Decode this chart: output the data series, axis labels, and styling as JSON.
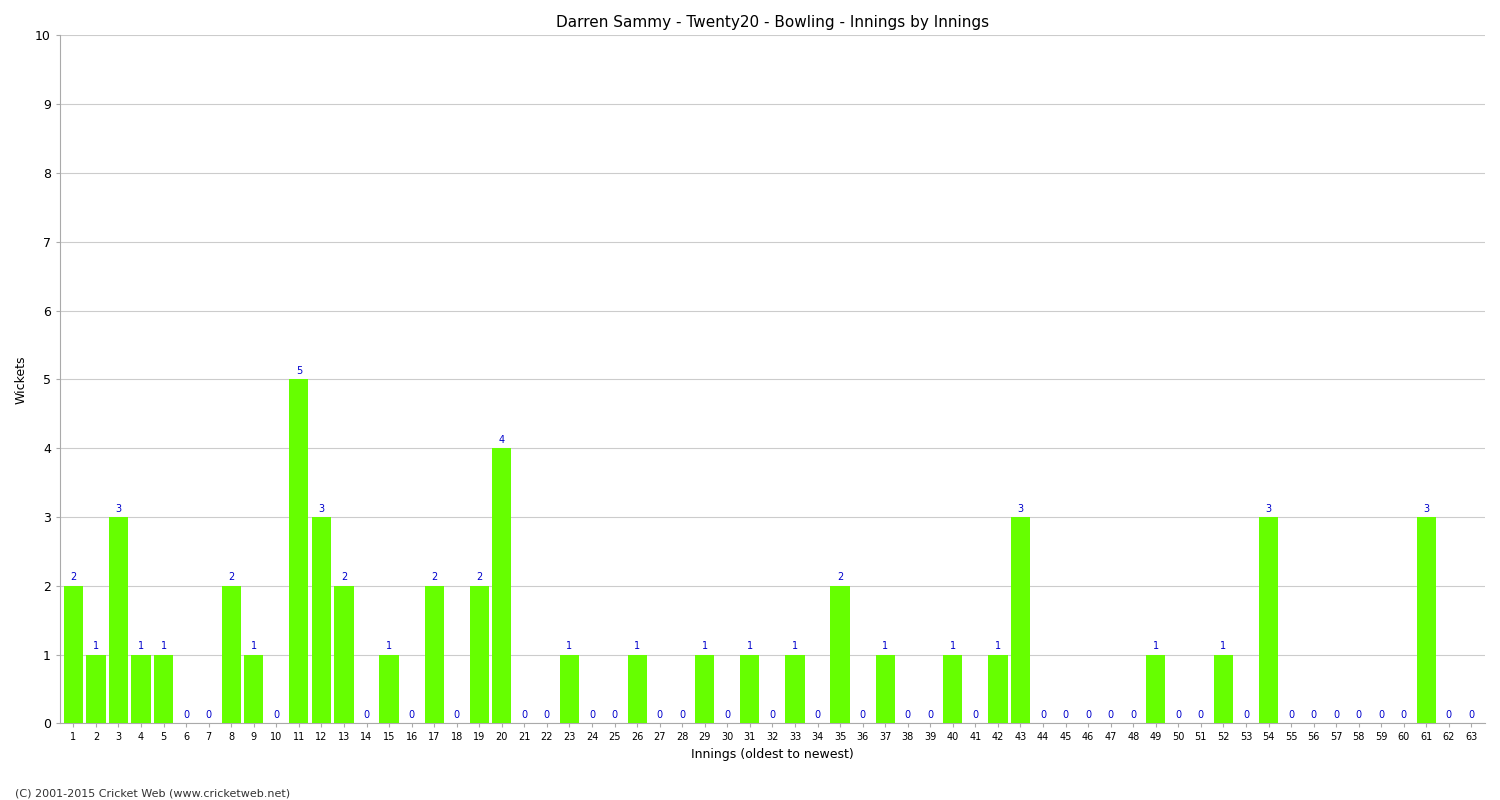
{
  "title": "Darren Sammy - Twenty20 - Bowling - Innings by Innings",
  "xlabel": "Innings (oldest to newest)",
  "ylabel": "Wickets",
  "ylim": [
    0,
    10
  ],
  "yticks": [
    0,
    1,
    2,
    3,
    4,
    5,
    6,
    7,
    8,
    9,
    10
  ],
  "bar_color": "#66ff00",
  "label_color": "#0000cc",
  "background_color": "#ffffff",
  "grid_color": "#cccccc",
  "innings": [
    1,
    2,
    3,
    4,
    5,
    6,
    7,
    8,
    9,
    10,
    11,
    12,
    13,
    14,
    15,
    16,
    17,
    18,
    19,
    20,
    21,
    22,
    23,
    24,
    25,
    26,
    27,
    28,
    29,
    30,
    31,
    32,
    33,
    34,
    35,
    36,
    37,
    38,
    39,
    40,
    41,
    42,
    43,
    44,
    45,
    46,
    47,
    48,
    49,
    50,
    51,
    52,
    53,
    54,
    55,
    56,
    57,
    58,
    59,
    60,
    61,
    62,
    63
  ],
  "wickets": [
    2,
    1,
    3,
    1,
    1,
    0,
    0,
    2,
    1,
    0,
    5,
    3,
    2,
    0,
    1,
    0,
    2,
    0,
    2,
    4,
    0,
    0,
    1,
    0,
    0,
    1,
    0,
    0,
    1,
    0,
    1,
    0,
    1,
    0,
    2,
    0,
    1,
    0,
    0,
    1,
    0,
    1,
    3,
    0,
    0,
    0,
    0,
    0,
    1,
    0,
    0,
    1,
    0,
    3,
    0,
    0,
    0,
    0,
    0,
    0,
    3,
    0,
    0
  ]
}
